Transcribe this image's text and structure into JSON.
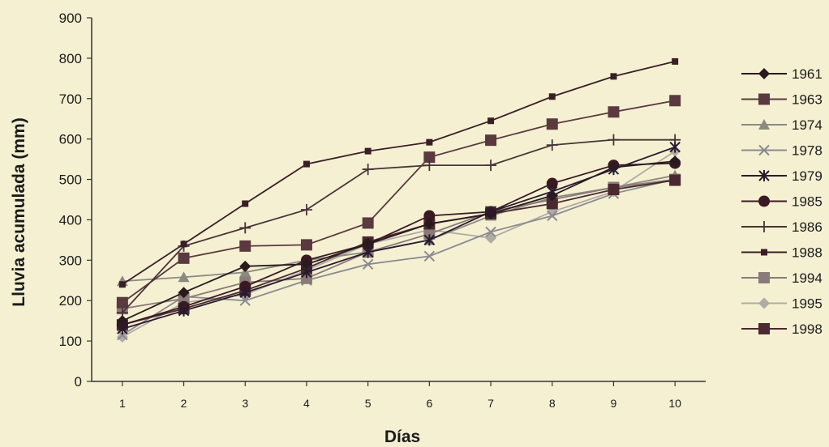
{
  "chart_data": {
    "type": "line",
    "title": "",
    "xlabel": "Días",
    "ylabel": "Lluvia acumulada (mm)",
    "x": [
      1,
      2,
      3,
      4,
      5,
      6,
      7,
      8,
      9,
      10
    ],
    "xlim": [
      0.5,
      10.5
    ],
    "ylim": [
      0,
      900
    ],
    "yticks": [
      0,
      100,
      200,
      300,
      400,
      500,
      600,
      700,
      800,
      900
    ],
    "grid": false,
    "legend_position": "right",
    "series": [
      {
        "name": "1961",
        "marker": "diamond",
        "color": "#2a1a1e",
        "values": [
          150,
          220,
          285,
          290,
          340,
          390,
          415,
          460,
          530,
          545
        ]
      },
      {
        "name": "1963",
        "marker": "square",
        "color": "#5a3a3e",
        "values": [
          195,
          305,
          335,
          338,
          392,
          555,
          597,
          637,
          667,
          695
        ]
      },
      {
        "name": "1974",
        "marker": "triangle",
        "color": "#8a8a80",
        "values": [
          248,
          258,
          270,
          300,
          320,
          350,
          410,
          455,
          480,
          510
        ]
      },
      {
        "name": "1978",
        "marker": "x",
        "color": "#8a8a90",
        "values": [
          115,
          210,
          200,
          250,
          290,
          310,
          370,
          410,
          465,
          500
        ]
      },
      {
        "name": "1979",
        "marker": "star",
        "color": "#2a1a2e",
        "values": [
          130,
          175,
          220,
          270,
          320,
          350,
          420,
          470,
          525,
          580
        ]
      },
      {
        "name": "1985",
        "marker": "circle",
        "color": "#3a1a22",
        "values": [
          140,
          185,
          235,
          300,
          340,
          410,
          420,
          490,
          535,
          540
        ]
      },
      {
        "name": "1986",
        "marker": "plus",
        "color": "#4a3438",
        "values": [
          170,
          335,
          380,
          425,
          525,
          535,
          535,
          585,
          598,
          598
        ]
      },
      {
        "name": "1988",
        "marker": "small-square",
        "color": "#3a1e26",
        "values": [
          240,
          340,
          440,
          538,
          570,
          592,
          645,
          705,
          755,
          792
        ]
      },
      {
        "name": "1994",
        "marker": "square",
        "color": "#8a7a78",
        "values": [
          180,
          205,
          245,
          255,
          320,
          365,
          420,
          450,
          480,
          500
        ]
      },
      {
        "name": "1995",
        "marker": "diamond",
        "color": "#b0aca4",
        "values": [
          110,
          195,
          215,
          275,
          340,
          375,
          355,
          420,
          470,
          570
        ]
      },
      {
        "name": "1998",
        "marker": "square",
        "color": "#4a2a30",
        "values": [
          140,
          180,
          225,
          280,
          345,
          390,
          415,
          440,
          475,
          498
        ]
      }
    ]
  }
}
